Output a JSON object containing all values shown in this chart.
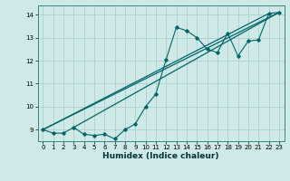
{
  "xlabel": "Humidex (Indice chaleur)",
  "ylabel": "",
  "bg_color": "#cfe8e8",
  "grid_color": "#b0d0d0",
  "line_color": "#006666",
  "xlim": [
    -0.5,
    23.5
  ],
  "ylim": [
    8.5,
    14.4
  ],
  "yticks": [
    9,
    10,
    11,
    12,
    13,
    14
  ],
  "xticks": [
    0,
    1,
    2,
    3,
    4,
    5,
    6,
    7,
    8,
    9,
    10,
    11,
    12,
    13,
    14,
    15,
    16,
    17,
    18,
    19,
    20,
    21,
    22,
    23
  ],
  "series": [
    [
      0,
      9.0
    ],
    [
      1,
      8.85
    ],
    [
      2,
      8.85
    ],
    [
      3,
      9.1
    ],
    [
      4,
      8.8
    ],
    [
      5,
      8.75
    ],
    [
      6,
      8.8
    ],
    [
      7,
      8.6
    ],
    [
      8,
      9.0
    ],
    [
      9,
      9.25
    ],
    [
      10,
      10.0
    ],
    [
      11,
      10.55
    ],
    [
      12,
      12.05
    ],
    [
      13,
      13.45
    ],
    [
      14,
      13.3
    ],
    [
      15,
      13.0
    ],
    [
      16,
      12.5
    ],
    [
      17,
      12.35
    ],
    [
      18,
      13.2
    ],
    [
      19,
      12.2
    ],
    [
      20,
      12.85
    ],
    [
      21,
      12.9
    ],
    [
      22,
      14.05
    ],
    [
      23,
      14.1
    ]
  ],
  "line2_points": [
    [
      0,
      9.0
    ],
    [
      23,
      14.1
    ]
  ],
  "line3_points": [
    [
      3,
      9.1
    ],
    [
      23,
      14.1
    ]
  ],
  "line4_points": [
    [
      0,
      9.0
    ],
    [
      22,
      14.05
    ]
  ]
}
